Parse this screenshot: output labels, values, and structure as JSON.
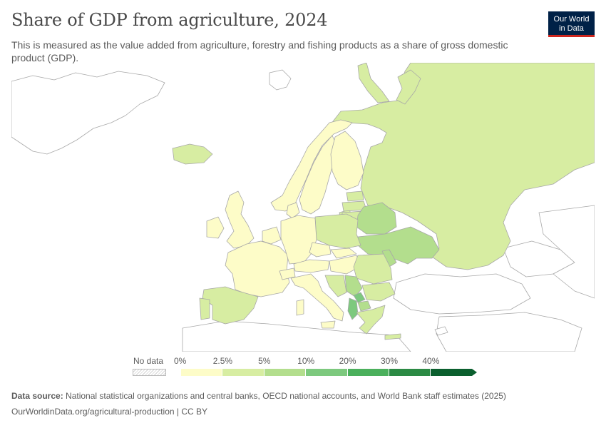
{
  "header": {
    "title": "Share of GDP from agriculture, 2024",
    "subtitle": "This is measured as the value added from agriculture, forestry and fishing products as a share of gross domestic product (GDP)."
  },
  "logo": {
    "line1": "Our World",
    "line2": "in Data",
    "bg": "#002147",
    "accent": "#ce261e"
  },
  "legend": {
    "no_data_label": "No data",
    "ticks": [
      "0%",
      "2.5%",
      "5%",
      "10%",
      "20%",
      "30%",
      "40%"
    ],
    "colors": [
      "#fdfcc8",
      "#d7eda2",
      "#b3de8d",
      "#7dc97e",
      "#4bb05c",
      "#2b8a44",
      "#0b5f2e"
    ]
  },
  "map_data": {
    "type": "choropleth",
    "region": "Europe",
    "year": 2024,
    "countries": [
      {
        "name": "Russia",
        "bin": "2.5–5%"
      },
      {
        "name": "Iceland",
        "bin": "2.5–5%"
      },
      {
        "name": "Norway",
        "bin": "0–2.5%"
      },
      {
        "name": "Sweden",
        "bin": "0–2.5%"
      },
      {
        "name": "Finland",
        "bin": "0–2.5%"
      },
      {
        "name": "United Kingdom",
        "bin": "0–2.5%"
      },
      {
        "name": "Ireland",
        "bin": "0–2.5%"
      },
      {
        "name": "France",
        "bin": "0–2.5%"
      },
      {
        "name": "Germany",
        "bin": "0–2.5%"
      },
      {
        "name": "Italy",
        "bin": "0–2.5%"
      },
      {
        "name": "Spain",
        "bin": "2.5–5%"
      },
      {
        "name": "Portugal",
        "bin": "2.5–5%"
      },
      {
        "name": "Poland",
        "bin": "2.5–5%"
      },
      {
        "name": "Belarus",
        "bin": "5–10%"
      },
      {
        "name": "Ukraine",
        "bin": "5–10%"
      },
      {
        "name": "Moldova",
        "bin": "5–10%"
      },
      {
        "name": "Romania",
        "bin": "2.5–5%"
      },
      {
        "name": "Bulgaria",
        "bin": "2.5–5%"
      },
      {
        "name": "Serbia",
        "bin": "5–10%"
      },
      {
        "name": "Albania",
        "bin": "10–20%"
      },
      {
        "name": "Kosovo",
        "bin": "5–10%"
      },
      {
        "name": "Greece",
        "bin": "2.5–5%"
      },
      {
        "name": "Baltic states",
        "bin": "2.5–5%"
      }
    ]
  },
  "footer": {
    "source_label": "Data source:",
    "source_text": "National statistical organizations and central banks, OECD national accounts, and World Bank staff estimates (2025)",
    "url_text": "OurWorldinData.org/agricultural-production | CC BY"
  }
}
